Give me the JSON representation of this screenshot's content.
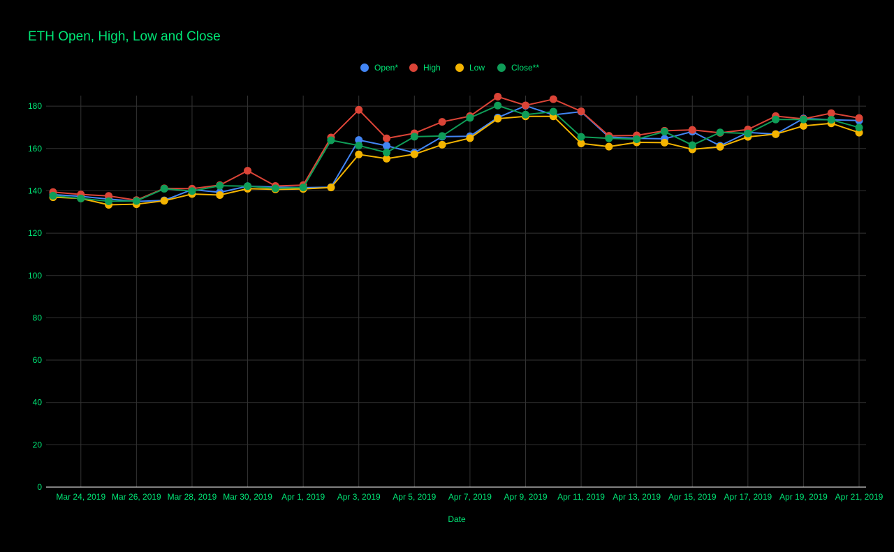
{
  "chart_data": {
    "type": "line",
    "title": "ETH Open, High, Low and Close",
    "xlabel": "Date",
    "ylabel": "",
    "ylim": [
      0,
      185
    ],
    "y_ticks": [
      "0",
      "20",
      "40",
      "60",
      "80",
      "100",
      "120",
      "140",
      "160",
      "180"
    ],
    "x_tick_labels": [
      "Mar 24, 2019",
      "Mar 26, 2019",
      "Mar 28, 2019",
      "Mar 30, 2019",
      "Apr 1, 2019",
      "Apr 3, 2019",
      "Apr 5, 2019",
      "Apr 7, 2019",
      "Apr 9, 2019",
      "Apr 11, 2019",
      "Apr 13, 2019",
      "Apr 15, 2019",
      "Apr 17, 2019",
      "Apr 19, 2019",
      "Apr 21, 2019"
    ],
    "x": [
      "Mar 23, 2019",
      "Mar 24, 2019",
      "Mar 25, 2019",
      "Mar 26, 2019",
      "Mar 27, 2019",
      "Mar 28, 2019",
      "Mar 29, 2019",
      "Mar 30, 2019",
      "Mar 31, 2019",
      "Apr 1, 2019",
      "Apr 2, 2019",
      "Apr 3, 2019",
      "Apr 4, 2019",
      "Apr 5, 2019",
      "Apr 6, 2019",
      "Apr 7, 2019",
      "Apr 8, 2019",
      "Apr 9, 2019",
      "Apr 10, 2019",
      "Apr 11, 2019",
      "Apr 12, 2019",
      "Apr 13, 2019",
      "Apr 14, 2019",
      "Apr 15, 2019",
      "Apr 16, 2019",
      "Apr 17, 2019",
      "Apr 18, 2019",
      "Apr 19, 2019",
      "Apr 20, 2019",
      "Apr 21, 2019"
    ],
    "series": [
      {
        "name": "Open*",
        "color": "#4285f4",
        "values": [
          138.2,
          137.4,
          136.1,
          135.0,
          135.5,
          140.6,
          139.3,
          142.2,
          141.8,
          141.5,
          141.7,
          164.0,
          161.3,
          158.0,
          165.6,
          165.8,
          174.6,
          180.2,
          175.9,
          177.4,
          165.4,
          164.8,
          164.6,
          168.0,
          161.3,
          167.6,
          166.8,
          174.2,
          173.6,
          173.2
        ]
      },
      {
        "name": "High",
        "color": "#db4437",
        "values": [
          139.4,
          138.3,
          137.6,
          135.6,
          141.2,
          141.0,
          142.7,
          149.5,
          142.3,
          142.7,
          165.2,
          178.3,
          164.8,
          167.2,
          172.6,
          175.3,
          184.5,
          180.4,
          183.3,
          177.6,
          166.0,
          166.2,
          168.4,
          168.8,
          167.4,
          169.0,
          175.3,
          174.0,
          176.7,
          174.4
        ]
      },
      {
        "name": "Low",
        "color": "#f4b400",
        "values": [
          137.0,
          136.4,
          133.4,
          133.7,
          135.3,
          138.5,
          138.0,
          141.0,
          140.7,
          140.9,
          141.6,
          157.2,
          155.2,
          157.3,
          161.8,
          164.9,
          174.1,
          175.2,
          175.2,
          162.4,
          160.9,
          162.9,
          162.8,
          159.6,
          160.8,
          165.5,
          166.8,
          170.7,
          171.9,
          167.5
        ]
      },
      {
        "name": "Close**",
        "color": "#0f9d58",
        "values": [
          137.7,
          136.4,
          135.1,
          135.2,
          141.0,
          139.9,
          142.4,
          142.2,
          141.2,
          141.6,
          163.9,
          161.4,
          158.1,
          165.6,
          165.9,
          174.5,
          180.3,
          176.0,
          177.4,
          165.5,
          164.8,
          164.4,
          168.0,
          161.6,
          167.6,
          167.1,
          173.7,
          173.7,
          173.6,
          169.9
        ]
      }
    ],
    "grid": true,
    "legend_position": "top",
    "colors": {
      "background": "#000000",
      "text": "#00e676",
      "grid": "#333333",
      "axis": "#ffffff"
    }
  }
}
